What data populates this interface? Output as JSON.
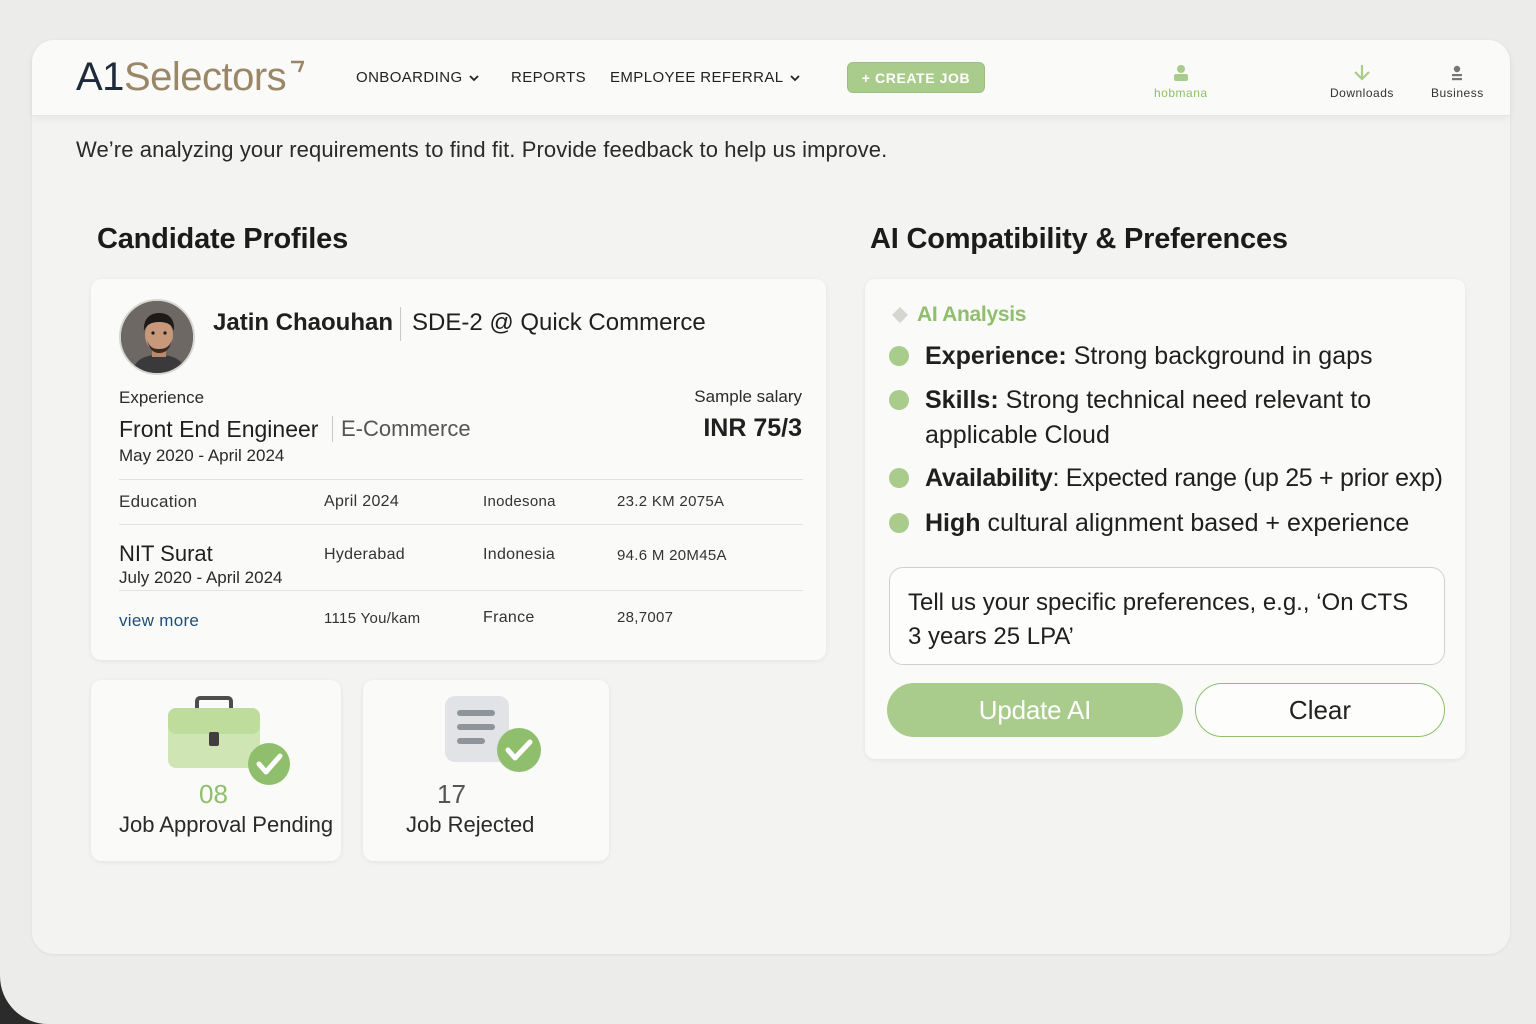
{
  "header": {
    "logo_part1": "A1",
    "logo_part2": "Selectors",
    "nav": [
      {
        "label": "ONBOARDING",
        "dropdown": true
      },
      {
        "label": "REPORTS",
        "dropdown": false
      },
      {
        "label": "EMPLOYEE REFERRAL",
        "dropdown": true
      }
    ],
    "create_job_label": "+ CREATE JOB",
    "user_label": "hobmana",
    "downloads_label": "Downloads",
    "business_label": "Business"
  },
  "subtitle": "We’re analyzing your requirements to find fit. Provide feedback to help us improve.",
  "candidates": {
    "section_title": "Candidate Profiles",
    "name": "Jatin Chaouhan",
    "role": "SDE-2 @ Quick Commerce",
    "experience_label": "Experience",
    "job_title": "Front End Engineer",
    "industry": "E-Commerce",
    "exp_dates": "May 2020 - April 2024",
    "salary_label": "Sample salary",
    "salary_value": "INR 75/3",
    "table": {
      "header": [
        "Education",
        "April 2024",
        "Inodesona",
        "23.2 KM 2075A"
      ],
      "row1": {
        "school": "NIT Surat",
        "dates": "July 2020 - April 2024",
        "c2": "Hyderabad",
        "c3": "Indonesia",
        "c4": "94.6 M 20M45A"
      },
      "row2": {
        "link": "view more",
        "c2": "1115 You/kam",
        "c3": "France",
        "c4": "28,7007"
      }
    }
  },
  "stats": [
    {
      "value": "08",
      "label": "Job Approval Pending",
      "icon": "briefcase-icon"
    },
    {
      "value": "17",
      "label": "Job Rejected",
      "icon": "document-icon"
    }
  ],
  "ai": {
    "section_title": "AI Compatibility & Preferences",
    "analysis_label": "AI Analysis",
    "items": [
      {
        "bold": "Experience:",
        "text": " Strong background in gaps"
      },
      {
        "bold": "Skills:",
        "text": " Strong technical need relevant to applicable Cloud"
      },
      {
        "bold": "Availability",
        "text": ": Expected range (up 25 + prior exp)"
      },
      {
        "bold": "High",
        "text": " cultural alignment based + experience"
      }
    ],
    "pref_placeholder": "Tell us your specific preferences, e.g., ‘On CTS 3 years 25 LPA’",
    "update_label": "Update AI",
    "clear_label": "Clear"
  },
  "colors": {
    "accent_green": "#a9cc8c",
    "logo_brown": "#9b8668",
    "logo_navy": "#1f2a3a",
    "link_blue": "#1f4e7a"
  }
}
